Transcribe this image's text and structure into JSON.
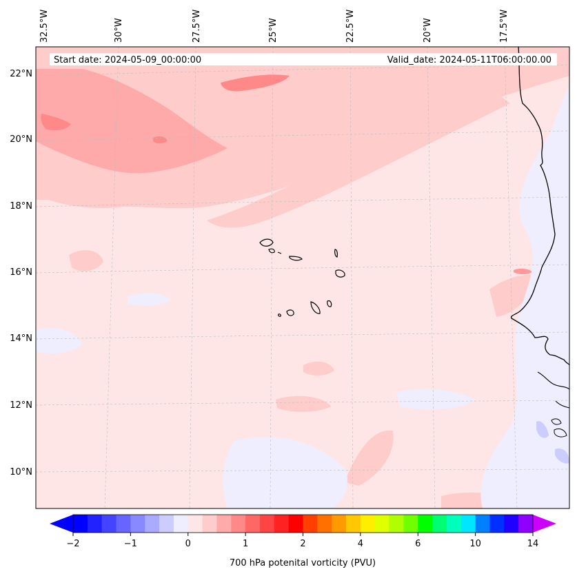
{
  "map": {
    "start_label": "Start date: 2024-05-09_00:00:00",
    "valid_label": "Valid_date: 2024-05-11T06:00:00.00",
    "lon_labels": [
      "32.5°W",
      "30°W",
      "27.5°W",
      "25°W",
      "22.5°W",
      "20°W",
      "17.5°W"
    ],
    "lat_labels": [
      "22°N",
      "20°N",
      "18°N",
      "16°N",
      "14°N",
      "12°N",
      "10°N"
    ]
  },
  "colorbar": {
    "label": "700 hPa potenital vorticity (PVU)",
    "tick_labels": [
      "−2",
      "−1",
      "0",
      "1",
      "2",
      "4",
      "6",
      "10",
      "14"
    ],
    "colors": [
      "#0000ff",
      "#2222ff",
      "#4444ff",
      "#6666ff",
      "#8888ff",
      "#aaaaff",
      "#ccccff",
      "#eeeeff",
      "#ffe6e6",
      "#ffcccc",
      "#ffaaaa",
      "#ff8888",
      "#ff6666",
      "#ff4444",
      "#ff2222",
      "#ff0000",
      "#ff4000",
      "#ff7000",
      "#ff9a00",
      "#ffc800",
      "#ffee00",
      "#e0ff00",
      "#b0ff00",
      "#70ff00",
      "#00ff00",
      "#00ff70",
      "#00ffbb",
      "#00e6ff",
      "#0080ff",
      "#0030ff",
      "#2000ff",
      "#9000ff"
    ],
    "under_color": "#0000ff",
    "over_color": "#cc00ff"
  },
  "colors": {
    "background_field": "#ffe6e6",
    "light_red": "#ffcccc",
    "mid_red": "#ff9999",
    "light_blue": "#eeeeff",
    "mid_blue": "#ccccff",
    "coast": "#000000"
  }
}
